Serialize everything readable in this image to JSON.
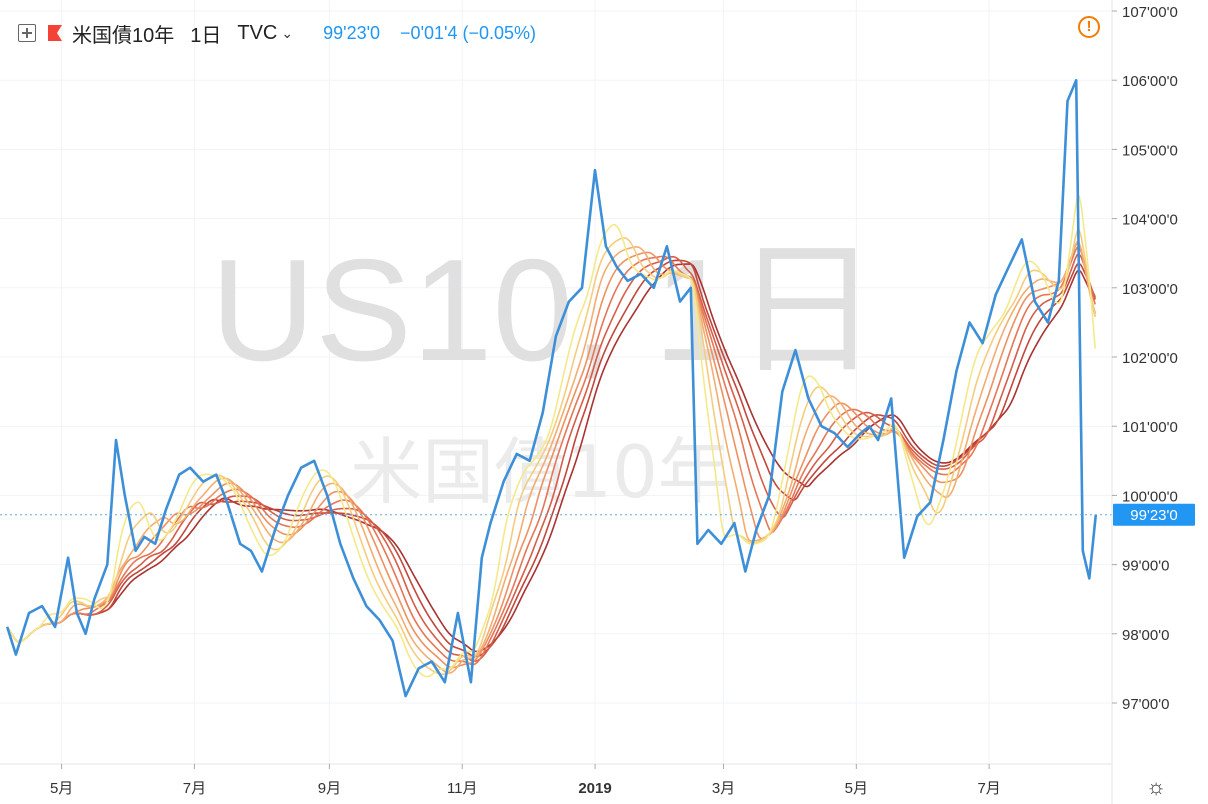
{
  "header": {
    "symbol": "米国債10年",
    "interval": "1日",
    "exchange": "TVC",
    "last_price": "99'23'0",
    "change": "−0'01'4 (−0.05%)"
  },
  "watermark": {
    "line1": "US10, 1日",
    "line2": "米国債10年"
  },
  "icons": {
    "add": "plus-square-icon",
    "flag": "red-flag-icon",
    "dropdown": "chevron-down-icon",
    "alert": "exclamation-circle-icon",
    "settings": "gear-icon"
  },
  "colors": {
    "price_line": "#3d8fd8",
    "last_price_label": "#2196f3",
    "alert": "#f57c00",
    "ribbon": [
      "#f4e98a",
      "#f5cc7e",
      "#f3ad70",
      "#ee9161",
      "#e57656",
      "#d65e48",
      "#c2473b",
      "#a83331"
    ]
  },
  "chart_data": {
    "type": "line",
    "title": "米国債10年",
    "y_axis": {
      "ticks": [
        "97'00'0",
        "98'00'0",
        "99'00'0",
        "100'00'0",
        "101'00'0",
        "102'00'0",
        "103'00'0",
        "104'00'0",
        "105'00'0",
        "106'00'0",
        "107'00'0"
      ],
      "tick_values": [
        97,
        98,
        99,
        100,
        101,
        102,
        103,
        104,
        105,
        106,
        107
      ],
      "range": [
        96,
        107.05
      ],
      "position": "right"
    },
    "x_axis": {
      "tick_labels": [
        "5月",
        "7月",
        "9月",
        "11月",
        "2019",
        "3月",
        "5月",
        "7月"
      ],
      "tick_dates": [
        "2018-05-01",
        "2018-07-01",
        "2018-09-01",
        "2018-11-01",
        "2019-01-01",
        "2019-03-01",
        "2019-05-01",
        "2019-07-01"
      ],
      "range": [
        "2018-04-05",
        "2019-08-20"
      ]
    },
    "last_value_label": "99'23'0",
    "last_value": 99.72,
    "series": [
      {
        "name": "米国債10年",
        "x": [
          "2018-04-06",
          "2018-04-10",
          "2018-04-16",
          "2018-04-22",
          "2018-04-28",
          "2018-05-04",
          "2018-05-08",
          "2018-05-12",
          "2018-05-16",
          "2018-05-22",
          "2018-05-26",
          "2018-05-30",
          "2018-06-04",
          "2018-06-08",
          "2018-06-13",
          "2018-06-18",
          "2018-06-24",
          "2018-06-29",
          "2018-07-05",
          "2018-07-11",
          "2018-07-16",
          "2018-07-22",
          "2018-07-27",
          "2018-08-01",
          "2018-08-07",
          "2018-08-13",
          "2018-08-19",
          "2018-08-25",
          "2018-08-31",
          "2018-09-06",
          "2018-09-12",
          "2018-09-18",
          "2018-09-24",
          "2018-09-30",
          "2018-10-06",
          "2018-10-12",
          "2018-10-18",
          "2018-10-24",
          "2018-10-30",
          "2018-11-05",
          "2018-11-10",
          "2018-11-14",
          "2018-11-20",
          "2018-11-26",
          "2018-12-02",
          "2018-12-08",
          "2018-12-14",
          "2018-12-20",
          "2018-12-26",
          "2019-01-01",
          "2019-01-06",
          "2019-01-11",
          "2019-01-16",
          "2019-01-22",
          "2019-01-28",
          "2019-02-03",
          "2019-02-09",
          "2019-02-14",
          "2019-02-17",
          "2019-02-22",
          "2019-02-28",
          "2019-03-06",
          "2019-03-11",
          "2019-03-16",
          "2019-03-22",
          "2019-03-28",
          "2019-04-03",
          "2019-04-09",
          "2019-04-15",
          "2019-04-21",
          "2019-04-27",
          "2019-05-03",
          "2019-05-07",
          "2019-05-11",
          "2019-05-17",
          "2019-05-23",
          "2019-05-29",
          "2019-06-04",
          "2019-06-10",
          "2019-06-16",
          "2019-06-22",
          "2019-06-28",
          "2019-07-04",
          "2019-07-10",
          "2019-07-16",
          "2019-07-22",
          "2019-07-28",
          "2019-08-02",
          "2019-08-06",
          "2019-08-10",
          "2019-08-13",
          "2019-08-16",
          "2019-08-19"
        ],
        "y": [
          98.1,
          97.7,
          98.3,
          98.4,
          98.1,
          99.1,
          98.3,
          98.0,
          98.5,
          99.0,
          100.8,
          100.0,
          99.2,
          99.4,
          99.3,
          99.8,
          100.3,
          100.4,
          100.2,
          100.3,
          99.9,
          99.3,
          99.2,
          98.9,
          99.5,
          100.0,
          100.4,
          100.5,
          100.0,
          99.3,
          98.8,
          98.4,
          98.2,
          97.9,
          97.1,
          97.5,
          97.6,
          97.3,
          98.3,
          97.3,
          99.1,
          99.6,
          100.2,
          100.6,
          100.5,
          101.2,
          102.3,
          102.8,
          103.0,
          104.7,
          103.6,
          103.3,
          103.1,
          103.2,
          103.0,
          103.6,
          102.8,
          103.0,
          99.3,
          99.5,
          99.3,
          99.6,
          98.9,
          99.5,
          100.0,
          101.5,
          102.1,
          101.4,
          101.0,
          100.9,
          100.7,
          100.9,
          101.0,
          100.8,
          101.4,
          99.1,
          99.7,
          99.9,
          100.8,
          101.8,
          102.5,
          102.2,
          102.9,
          103.3,
          103.7,
          102.8,
          102.5,
          103.1,
          105.7,
          106.0,
          99.2,
          98.8,
          99.72
        ]
      }
    ],
    "moving_average_ribbon": {
      "count": 8,
      "note_colors": "yellow (fastest) to dark red (slowest)"
    },
    "grid": true,
    "legend": "none"
  }
}
